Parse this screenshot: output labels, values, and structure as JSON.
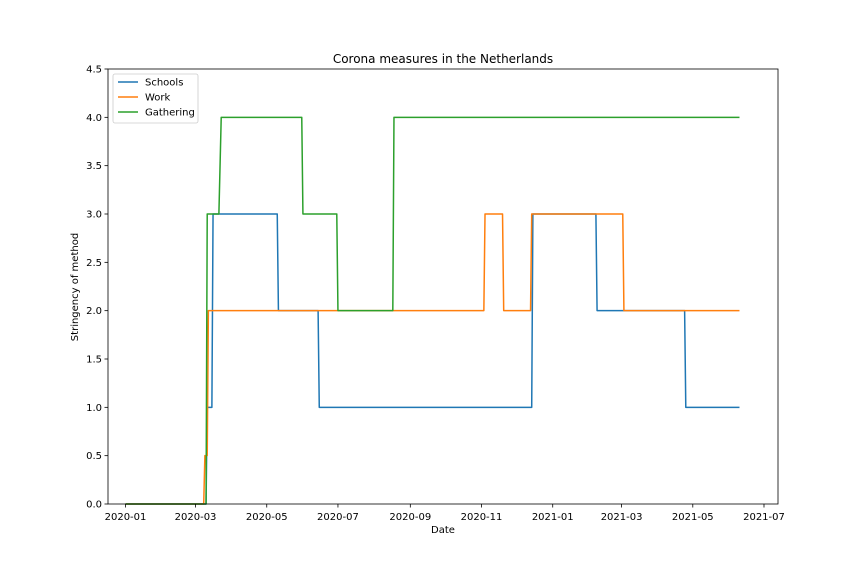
{
  "chart_data": {
    "type": "line",
    "title": "Corona measures in the Netherlands",
    "xlabel": "Date",
    "ylabel": "Stringency of method",
    "xlim": [
      "2019-12-17",
      "2021-07-13"
    ],
    "ylim": [
      0,
      4.5
    ],
    "x_ticks": [
      "2020-01",
      "2020-03",
      "2020-05",
      "2020-07",
      "2020-09",
      "2020-11",
      "2021-01",
      "2021-03",
      "2021-05",
      "2021-07"
    ],
    "y_ticks": [
      "0.0",
      "0.5",
      "1.0",
      "1.5",
      "2.0",
      "2.5",
      "3.0",
      "3.5",
      "4.0",
      "4.5"
    ],
    "grid": false,
    "legend": "top-left",
    "series": [
      {
        "name": "Schools",
        "color": "#1f77b4",
        "points": [
          [
            "2020-01-01",
            0
          ],
          [
            "2020-03-10",
            0
          ],
          [
            "2020-03-11",
            1
          ],
          [
            "2020-03-15",
            1
          ],
          [
            "2020-03-16",
            3
          ],
          [
            "2020-05-10",
            3
          ],
          [
            "2020-05-11",
            2
          ],
          [
            "2020-06-14",
            2
          ],
          [
            "2020-06-15",
            1
          ],
          [
            "2020-12-14",
            1
          ],
          [
            "2020-12-15",
            3
          ],
          [
            "2021-02-07",
            3
          ],
          [
            "2021-02-08",
            2
          ],
          [
            "2021-04-24",
            2
          ],
          [
            "2021-04-25",
            1
          ],
          [
            "2021-06-10",
            1
          ]
        ]
      },
      {
        "name": "Work",
        "color": "#ff7f0e",
        "points": [
          [
            "2020-01-01",
            0
          ],
          [
            "2020-03-08",
            0
          ],
          [
            "2020-03-09",
            0.5
          ],
          [
            "2020-03-11",
            0.5
          ],
          [
            "2020-03-12",
            2
          ],
          [
            "2020-11-03",
            2
          ],
          [
            "2020-11-04",
            3
          ],
          [
            "2020-11-19",
            3
          ],
          [
            "2020-11-20",
            2
          ],
          [
            "2020-12-13",
            2
          ],
          [
            "2020-12-14",
            3
          ],
          [
            "2021-03-02",
            3
          ],
          [
            "2021-03-03",
            2
          ],
          [
            "2021-06-10",
            2
          ]
        ]
      },
      {
        "name": "Gathering",
        "color": "#2ca02c",
        "points": [
          [
            "2020-01-01",
            0
          ],
          [
            "2020-03-10",
            0
          ],
          [
            "2020-03-11",
            3
          ],
          [
            "2020-03-21",
            3
          ],
          [
            "2020-03-23",
            4
          ],
          [
            "2020-05-31",
            4
          ],
          [
            "2020-06-01",
            3
          ],
          [
            "2020-06-30",
            3
          ],
          [
            "2020-07-01",
            2
          ],
          [
            "2020-08-17",
            2
          ],
          [
            "2020-08-18",
            4
          ],
          [
            "2021-06-10",
            4
          ]
        ]
      }
    ]
  }
}
